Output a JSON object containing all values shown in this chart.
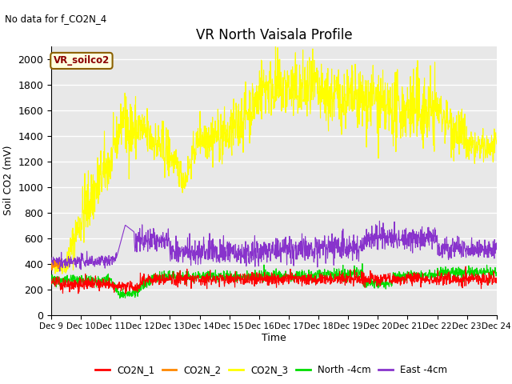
{
  "title": "VR North Vaisala Profile",
  "subtitle": "No data for f_CO2N_4",
  "ylabel": "Soil CO2 (mV)",
  "xlabel": "Time",
  "legend_label": "VR_soilco2",
  "ylim": [
    0,
    2100
  ],
  "yticks": [
    0,
    200,
    400,
    600,
    800,
    1000,
    1200,
    1400,
    1600,
    1800,
    2000
  ],
  "x_tick_labels": [
    "Dec 9",
    "Dec 10",
    "Dec 11",
    "Dec 12",
    "Dec 13",
    "Dec 14",
    "Dec 15",
    "Dec 16",
    "Dec 17",
    "Dec 18",
    "Dec 19",
    "Dec 20",
    "Dec 21",
    "Dec 22",
    "Dec 23",
    "Dec 24"
  ],
  "colors": {
    "CO2N_1": "#ff0000",
    "CO2N_2": "#ff8800",
    "CO2N_3": "#ffff00",
    "North_4cm": "#00dd00",
    "East_4cm": "#8833cc"
  },
  "bg_color": "#e8e8e8",
  "legend_entries": [
    "CO2N_1",
    "CO2N_2",
    "CO2N_3",
    "North -4cm",
    "East -4cm"
  ]
}
